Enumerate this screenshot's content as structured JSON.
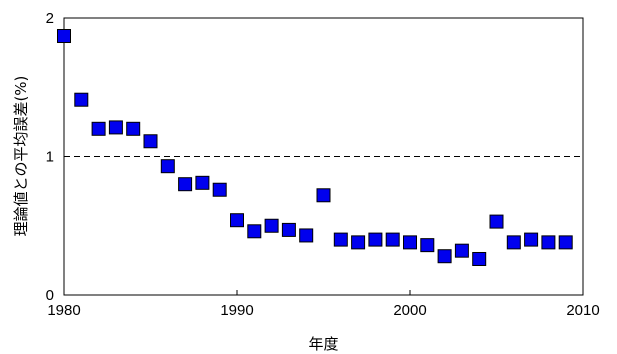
{
  "chart_data": {
    "type": "scatter",
    "title": "",
    "xlabel": "年度",
    "ylabel": "理論値との平均誤差(%)",
    "xlim": [
      1980,
      2010
    ],
    "ylim": [
      0,
      2
    ],
    "xticks": [
      1980,
      1990,
      2000,
      2010
    ],
    "yticks": [
      0,
      1,
      2
    ],
    "reference_lines": [
      1,
      2
    ],
    "marker": "square",
    "marker_color": "#0000ee",
    "grid": false,
    "legend": "none",
    "series": [
      {
        "x": [
          1980,
          1981,
          1982,
          1983,
          1984,
          1985,
          1986,
          1987,
          1988,
          1989,
          1990,
          1991,
          1992,
          1993,
          1994,
          1995,
          1996,
          1997,
          1998,
          1999,
          2000,
          2001,
          2002,
          2003,
          2004,
          2005,
          2006,
          2007,
          2008,
          2009
        ],
        "y": [
          1.87,
          1.41,
          1.2,
          1.21,
          1.2,
          1.11,
          0.93,
          0.8,
          0.81,
          0.76,
          0.54,
          0.46,
          0.5,
          0.47,
          0.43,
          0.72,
          0.4,
          0.38,
          0.4,
          0.4,
          0.38,
          0.36,
          0.28,
          0.32,
          0.26,
          0.53,
          0.38,
          0.4,
          0.38,
          0.38
        ]
      }
    ]
  }
}
